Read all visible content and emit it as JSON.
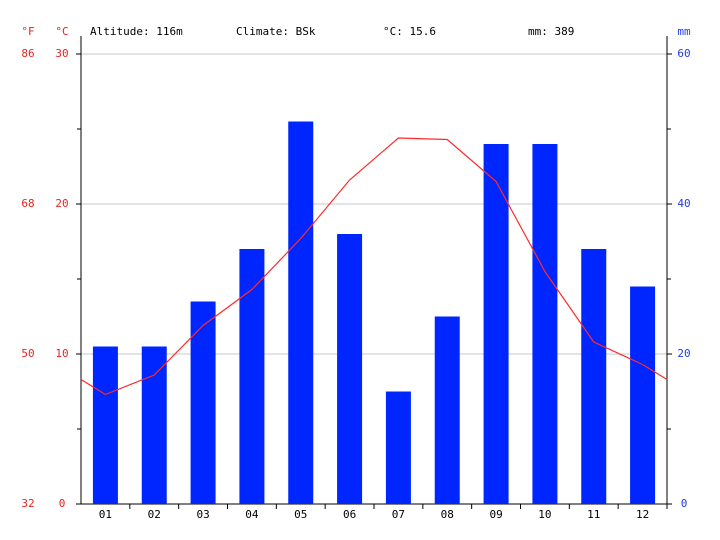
{
  "chart_data": {
    "type": "bar",
    "header": [
      "Altitude: 116m",
      "Climate: BSk",
      "°C: 15.6",
      "mm: 389"
    ],
    "y_label_f": "°F",
    "y_label": "°C",
    "y2_label": "mm",
    "categories": [
      "01",
      "02",
      "03",
      "04",
      "05",
      "06",
      "07",
      "08",
      "09",
      "10",
      "11",
      "12"
    ],
    "series": [
      {
        "type": "bar",
        "color": "#0026ff",
        "axis": "y2",
        "values": [
          21,
          21,
          27,
          34,
          51,
          36,
          15,
          25,
          48,
          48,
          34,
          29
        ]
      },
      {
        "type": "line",
        "color": "#ff2a2a",
        "values": [
          7.3,
          8.6,
          11.9,
          14.3,
          17.7,
          21.6,
          24.4,
          24.3,
          21.5,
          15.5,
          10.8,
          9.3
        ]
      }
    ],
    "ylim": [
      0,
      30
    ],
    "yticks": [
      0,
      10,
      20,
      30
    ],
    "y_minor_ticks": [
      5,
      15,
      25
    ],
    "ylim_f": [
      32,
      86
    ],
    "yticks_f": [
      32,
      50,
      68,
      86
    ],
    "y2lim": [
      0,
      60
    ],
    "y2ticks": [
      0,
      20,
      40,
      60
    ],
    "y2_minor_ticks": [
      10,
      30,
      50
    ],
    "grid": true
  }
}
